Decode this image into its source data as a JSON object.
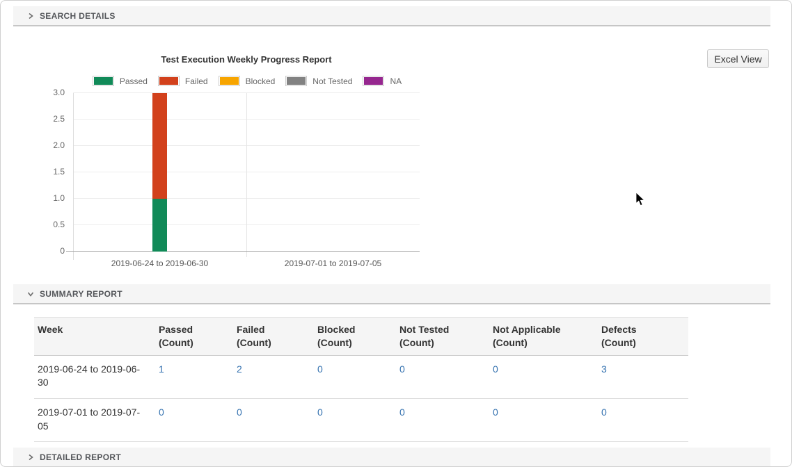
{
  "page": {
    "sections": {
      "search_details": {
        "label": "SEARCH DETAILS",
        "state": "collapsed"
      },
      "summary_report": {
        "label": "SUMMARY REPORT",
        "state": "expanded"
      },
      "detailed_report": {
        "label": "DETAILED REPORT",
        "state": "collapsed"
      }
    },
    "excel_view_button": "Excel View"
  },
  "chart_data": {
    "type": "bar",
    "stacked": true,
    "title": "Test Execution Weekly Progress Report",
    "categories": [
      "2019-06-24 to 2019-06-30",
      "2019-07-01 to 2019-07-05"
    ],
    "series": [
      {
        "name": "Passed",
        "color": "#118a58",
        "values": [
          1,
          0
        ]
      },
      {
        "name": "Failed",
        "color": "#d2411c",
        "values": [
          2,
          0
        ]
      },
      {
        "name": "Blocked",
        "color": "#f7a500",
        "values": [
          0,
          0
        ]
      },
      {
        "name": "Not Tested",
        "color": "#828282",
        "values": [
          0,
          0
        ]
      },
      {
        "name": "NA",
        "color": "#96278f",
        "values": [
          0,
          0
        ]
      }
    ],
    "ylim": [
      0,
      3
    ],
    "ytick_step": 0.5,
    "grid": true,
    "legend_position": "top"
  },
  "summary_table": {
    "columns": [
      {
        "title": "Week",
        "sub": ""
      },
      {
        "title": "Passed",
        "sub": "(Count)"
      },
      {
        "title": "Failed",
        "sub": "(Count)"
      },
      {
        "title": "Blocked",
        "sub": "(Count)"
      },
      {
        "title": "Not Tested",
        "sub": "(Count)"
      },
      {
        "title": "Not Applicable",
        "sub": "(Count)"
      },
      {
        "title": "Defects",
        "sub": "(Count)"
      }
    ],
    "rows": [
      {
        "week": "2019-06-24 to 2019-06-30",
        "values": [
          "1",
          "2",
          "0",
          "0",
          "0",
          "3"
        ]
      },
      {
        "week": "2019-07-01 to 2019-07-05",
        "values": [
          "0",
          "0",
          "0",
          "0",
          "0",
          "0"
        ]
      }
    ],
    "link_color": "#3572b0"
  }
}
